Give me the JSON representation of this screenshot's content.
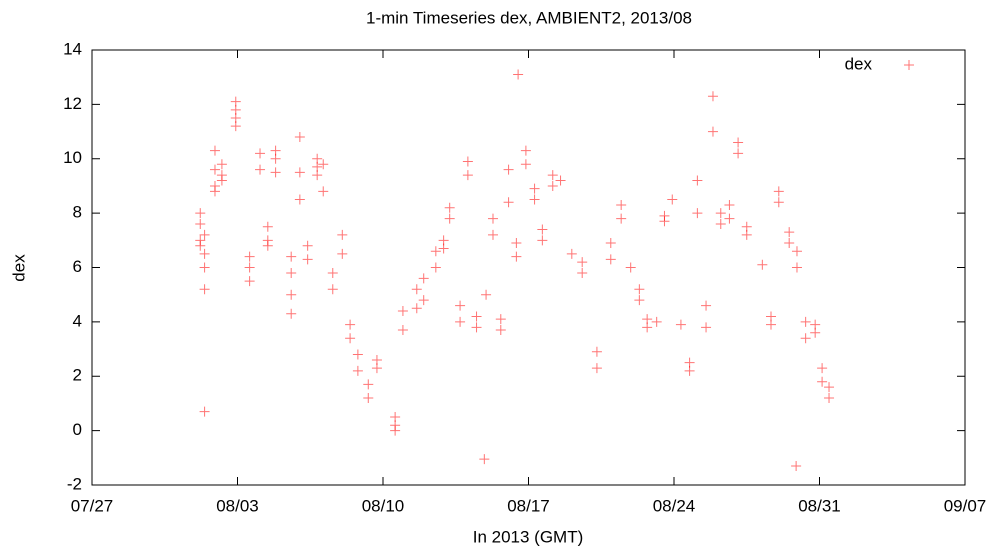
{
  "chart_data": {
    "type": "scatter",
    "title": "1-min Timeseries dex, AMBIENT2, 2013/08",
    "x_label": "In 2013 (GMT)",
    "y_label": "dex",
    "xlim": [
      "07/27",
      "09/07"
    ],
    "xticks": [
      "07/27",
      "08/03",
      "08/10",
      "08/17",
      "08/24",
      "08/31",
      "09/07"
    ],
    "ylim": [
      -2,
      14
    ],
    "yticks": [
      -2,
      0,
      2,
      4,
      6,
      8,
      10,
      12,
      14
    ],
    "grid": false,
    "legend": "top-right",
    "series": [
      {
        "name": "dex",
        "color": "#ff0000",
        "x": [
          "08/01 05:00",
          "08/01 05:00",
          "08/01 05:00",
          "08/01 05:00",
          "08/01 10:00",
          "08/01 10:00",
          "08/01 10:00",
          "08/01 10:00",
          "08/01 10:00",
          "08/01 22:00",
          "08/01 22:00",
          "08/01 22:00",
          "08/01 22:00",
          "08/02 06:00",
          "08/02 06:00",
          "08/02 06:00",
          "08/02 22:00",
          "08/02 22:00",
          "08/02 22:00",
          "08/02 22:00",
          "08/03 14:00",
          "08/03 14:00",
          "08/03 14:00",
          "08/04 02:00",
          "08/04 02:00",
          "08/04 11:00",
          "08/04 11:00",
          "08/04 11:00",
          "08/04 20:00",
          "08/04 20:00",
          "08/04 20:00",
          "08/05 14:00",
          "08/05 14:00",
          "08/05 14:00",
          "08/05 14:00",
          "08/06 00:00",
          "08/06 00:00",
          "08/06 00:00",
          "08/06 09:00",
          "08/06 09:00",
          "08/06 20:00",
          "08/06 20:00",
          "08/06 20:00",
          "08/07 03:00",
          "08/07 03:00",
          "08/07 14:00",
          "08/07 14:00",
          "08/08 01:00",
          "08/08 01:00",
          "08/08 10:00",
          "08/08 10:00",
          "08/08 19:00",
          "08/08 19:00",
          "08/09 07:00",
          "08/09 07:00",
          "08/09 17:00",
          "08/09 17:00",
          "08/10 14:00",
          "08/10 14:00",
          "08/10 14:00",
          "08/10 23:00",
          "08/10 23:00",
          "08/11 15:00",
          "08/11 15:00",
          "08/11 23:00",
          "08/11 23:00",
          "08/12 13:00",
          "08/12 13:00",
          "08/12 22:00",
          "08/12 22:00",
          "08/13 05:00",
          "08/13 05:00",
          "08/13 17:00",
          "08/13 17:00",
          "08/14 02:00",
          "08/14 02:00",
          "08/14 12:00",
          "08/14 12:00",
          "08/14 21:00",
          "08/14 23:00",
          "08/15 07:00",
          "08/15 07:00",
          "08/15 16:00",
          "08/15 16:00",
          "08/16 01:00",
          "08/16 01:00",
          "08/16 10:00",
          "08/16 10:00",
          "08/16 12:00",
          "08/16 21:00",
          "08/16 21:00",
          "08/17 07:00",
          "08/17 07:00",
          "08/17 16:00",
          "08/17 16:00",
          "08/18 04:00",
          "08/18 04:00",
          "08/18 13:00",
          "08/19 02:00",
          "08/19 14:00",
          "08/19 14:00",
          "08/20 07:00",
          "08/20 07:00",
          "08/20 23:00",
          "08/20 23:00",
          "08/21 11:00",
          "08/21 11:00",
          "08/21 22:00",
          "08/22 08:00",
          "08/22 08:00",
          "08/22 17:00",
          "08/22 17:00",
          "08/23 04:00",
          "08/23 13:00",
          "08/23 13:00",
          "08/23 22:00",
          "08/24 08:00",
          "08/24 18:00",
          "08/24 18:00",
          "08/25 03:00",
          "08/25 03:00",
          "08/25 13:00",
          "08/25 13:00",
          "08/25 21:00",
          "08/25 21:00",
          "08/26 06:00",
          "08/26 06:00",
          "08/26 16:00",
          "08/26 16:00",
          "08/27 02:00",
          "08/27 02:00",
          "08/27 12:00",
          "08/27 12:00",
          "08/28 06:00",
          "08/28 16:00",
          "08/28 16:00",
          "08/29 01:00",
          "08/29 01:00",
          "08/29 13:00",
          "08/29 13:00",
          "08/29 21:00",
          "08/29 22:00",
          "08/29 22:00",
          "08/30 08:00",
          "08/30 08:00",
          "08/30 19:00",
          "08/30 19:00",
          "08/31 03:00",
          "08/31 03:00",
          "08/31 11:00",
          "08/31 11:00"
        ],
        "values": [
          7.0,
          7.6,
          8.0,
          6.8,
          6.0,
          6.5,
          7.2,
          5.2,
          0.7,
          9.0,
          9.6,
          10.3,
          8.8,
          9.2,
          9.8,
          9.4,
          11.2,
          11.8,
          12.1,
          11.5,
          5.5,
          6.0,
          6.4,
          9.6,
          10.2,
          7.0,
          7.5,
          6.8,
          9.5,
          10.0,
          10.3,
          5.0,
          5.8,
          6.4,
          4.3,
          8.5,
          9.5,
          10.8,
          6.3,
          6.8,
          9.4,
          10.0,
          9.7,
          8.8,
          9.8,
          5.2,
          5.8,
          6.5,
          7.2,
          3.4,
          3.9,
          2.2,
          2.8,
          1.2,
          1.7,
          2.3,
          2.6,
          0.2,
          0.5,
          0.0,
          3.7,
          4.4,
          4.5,
          5.2,
          4.8,
          5.6,
          6.0,
          6.6,
          7.0,
          6.7,
          7.8,
          8.2,
          4.0,
          4.6,
          9.4,
          9.9,
          3.8,
          4.2,
          -1.05,
          5.0,
          7.2,
          7.8,
          3.7,
          4.1,
          8.4,
          9.6,
          6.4,
          6.9,
          13.1,
          9.8,
          10.3,
          8.5,
          8.9,
          7.0,
          7.4,
          9.0,
          9.4,
          9.2,
          6.5,
          5.8,
          6.2,
          2.3,
          2.9,
          6.3,
          6.9,
          7.8,
          8.3,
          6.0,
          4.8,
          5.2,
          3.8,
          4.1,
          4.0,
          7.7,
          7.9,
          8.5,
          3.9,
          2.2,
          2.5,
          8.0,
          9.2,
          3.8,
          4.6,
          11.0,
          12.3,
          7.6,
          8.0,
          7.8,
          8.3,
          10.2,
          10.6,
          7.2,
          7.5,
          6.1,
          3.9,
          4.2,
          8.4,
          8.8,
          6.9,
          7.3,
          -1.3,
          6.0,
          6.6,
          3.4,
          4.0,
          3.6,
          3.9,
          1.8,
          2.3,
          1.2,
          1.6
        ]
      }
    ]
  }
}
